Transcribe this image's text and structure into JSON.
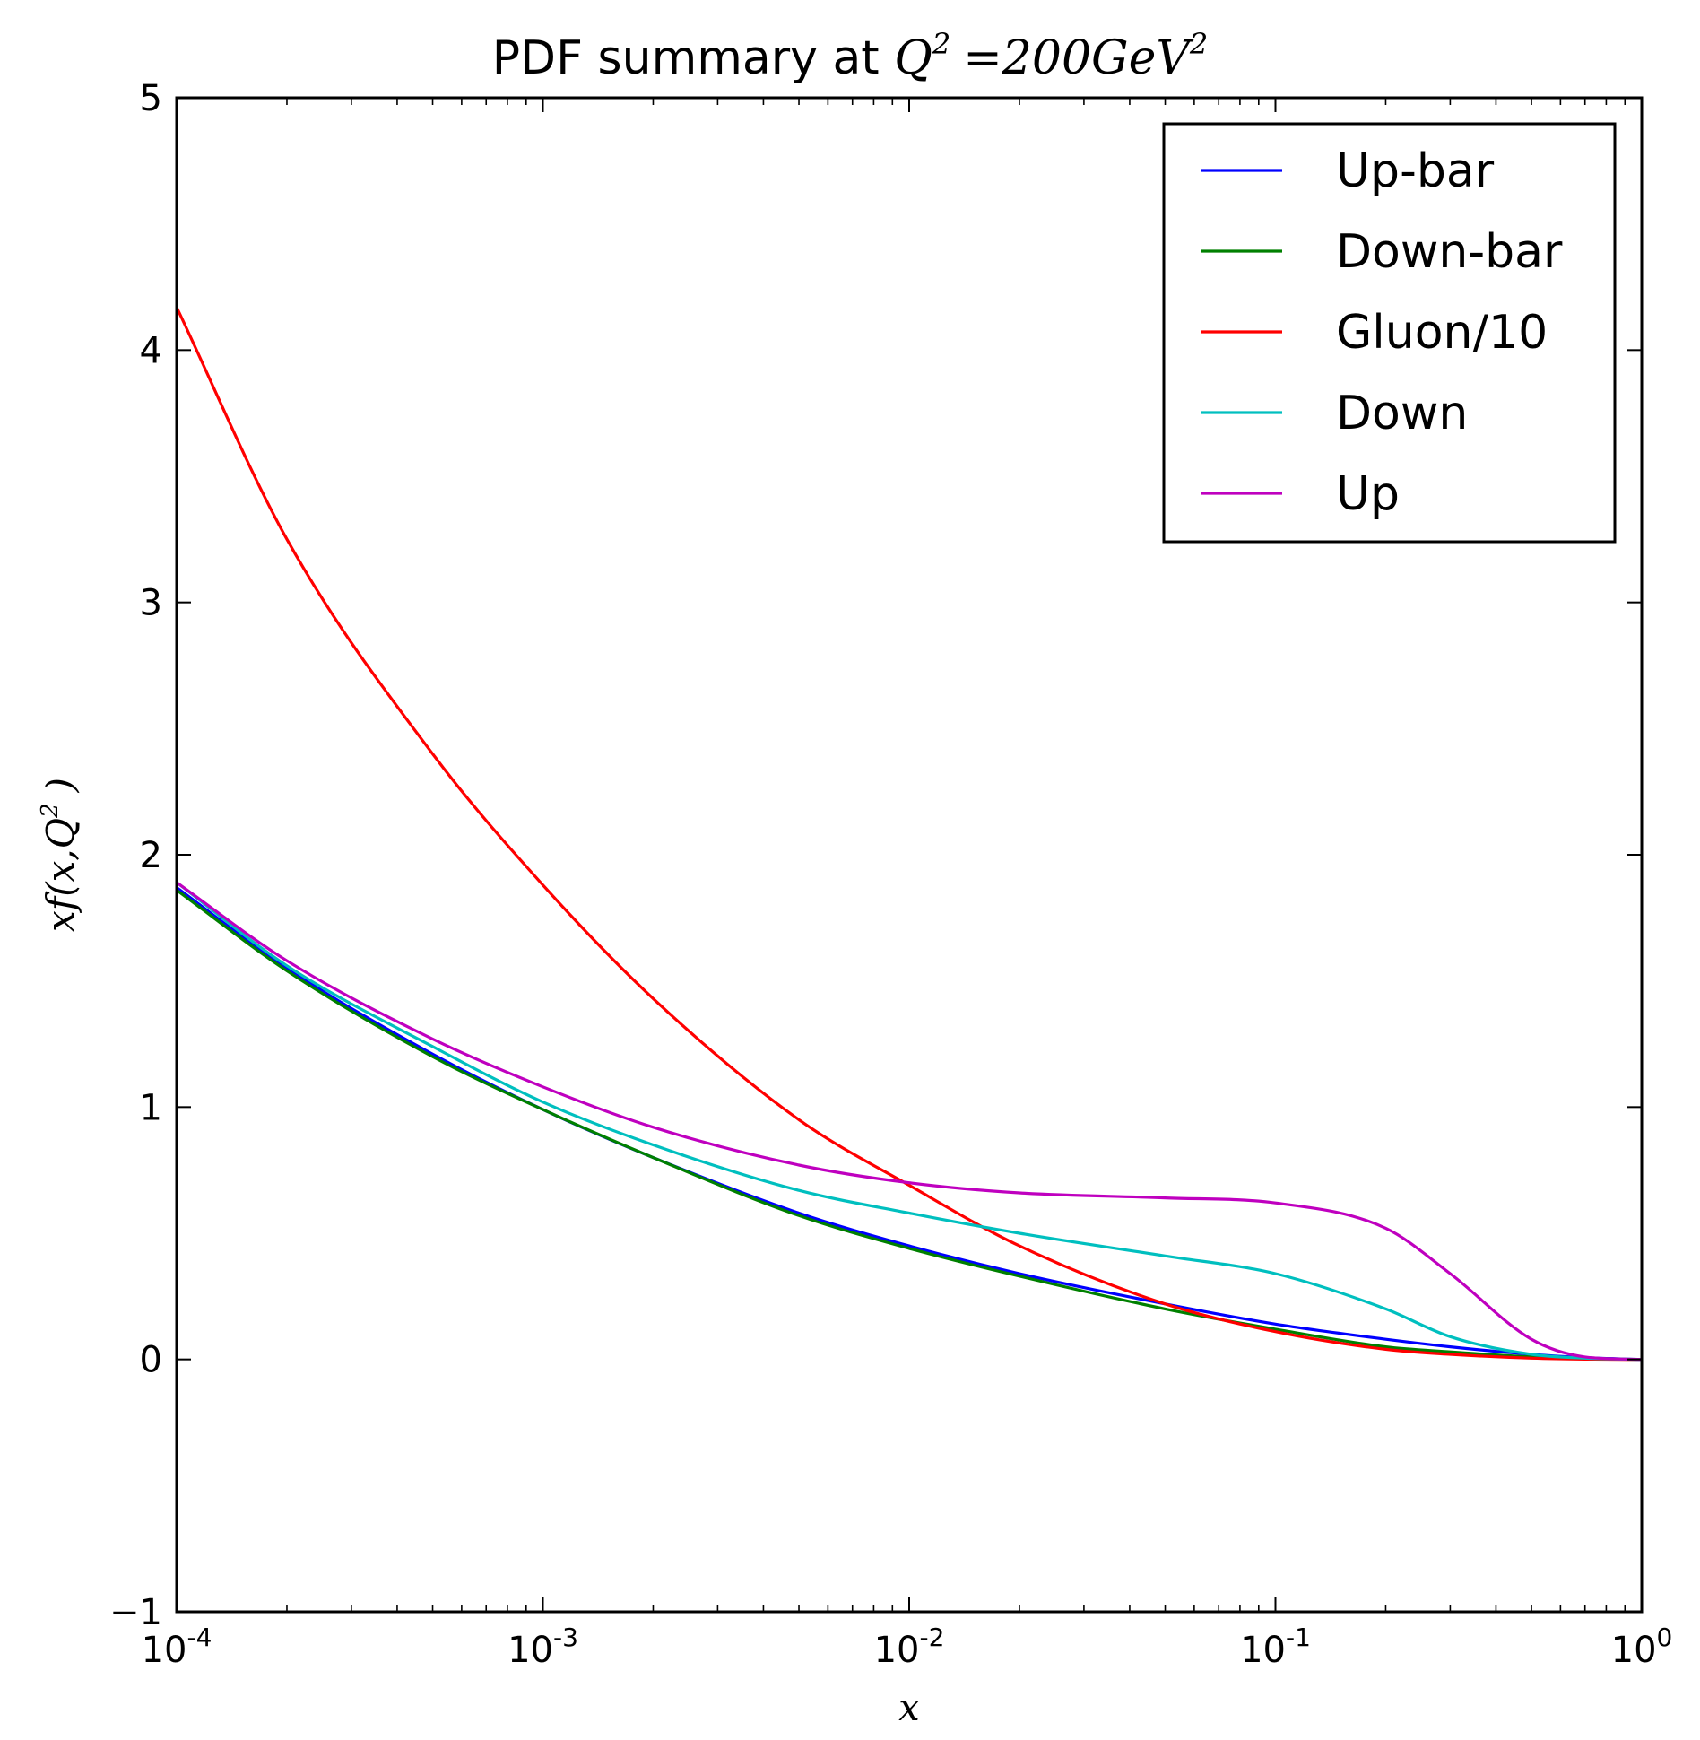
{
  "chart_data": {
    "type": "line",
    "title_text": "PDF summary at ",
    "title_math": {
      "lhs": "Q",
      "lhs_exp": "2",
      "rhs": "=200GeV",
      "rhs_exp": "2"
    },
    "xlabel": "x",
    "ylabel": {
      "prefix": "xf(x,Q",
      "exp": "2",
      "suffix": ")"
    },
    "xscale": "log",
    "xlim": [
      0.0001,
      1
    ],
    "ylim": [
      -1,
      5
    ],
    "xticks": [
      {
        "value": 0.0001,
        "base": "10",
        "exp": "-4"
      },
      {
        "value": 0.001,
        "base": "10",
        "exp": "-3"
      },
      {
        "value": 0.01,
        "base": "10",
        "exp": "-2"
      },
      {
        "value": 0.1,
        "base": "10",
        "exp": "-1"
      },
      {
        "value": 1,
        "base": "10",
        "exp": "0"
      }
    ],
    "yticks": [
      {
        "value": -1,
        "label": "−1"
      },
      {
        "value": 0,
        "label": "0"
      },
      {
        "value": 1,
        "label": "1"
      },
      {
        "value": 2,
        "label": "2"
      },
      {
        "value": 3,
        "label": "3"
      },
      {
        "value": 4,
        "label": "4"
      },
      {
        "value": 5,
        "label": "5"
      }
    ],
    "grid": false,
    "legend_position": "top-right",
    "x": [
      0.0001,
      0.0002,
      0.0005,
      0.001,
      0.002,
      0.005,
      0.01,
      0.02,
      0.05,
      0.1,
      0.2,
      0.3,
      0.5,
      0.7,
      1.0
    ],
    "series": [
      {
        "name": "Up-bar",
        "color": "#0000ff",
        "values": [
          1.87,
          1.55,
          1.21,
          0.99,
          0.8,
          0.58,
          0.45,
          0.34,
          0.22,
          0.14,
          0.08,
          0.05,
          0.02,
          0.007,
          0.0
        ]
      },
      {
        "name": "Down-bar",
        "color": "#008000",
        "values": [
          1.86,
          1.54,
          1.2,
          0.99,
          0.8,
          0.57,
          0.44,
          0.33,
          0.2,
          0.12,
          0.05,
          0.03,
          0.01,
          0.003,
          0.0
        ]
      },
      {
        "name": "Gluon/10",
        "color": "#ff0000",
        "values": [
          4.17,
          3.25,
          2.4,
          1.88,
          1.43,
          0.95,
          0.69,
          0.45,
          0.22,
          0.11,
          0.04,
          0.02,
          0.005,
          0.001,
          0.0
        ]
      },
      {
        "name": "Down",
        "color": "#00bfbf",
        "values": [
          1.89,
          1.56,
          1.24,
          1.02,
          0.85,
          0.67,
          0.58,
          0.5,
          0.41,
          0.34,
          0.2,
          0.09,
          0.02,
          0.005,
          0.0
        ]
      },
      {
        "name": "Up",
        "color": "#bf00bf",
        "values": [
          1.89,
          1.58,
          1.27,
          1.08,
          0.92,
          0.77,
          0.7,
          0.66,
          0.64,
          0.62,
          0.52,
          0.34,
          0.08,
          0.01,
          0.0
        ]
      }
    ]
  }
}
